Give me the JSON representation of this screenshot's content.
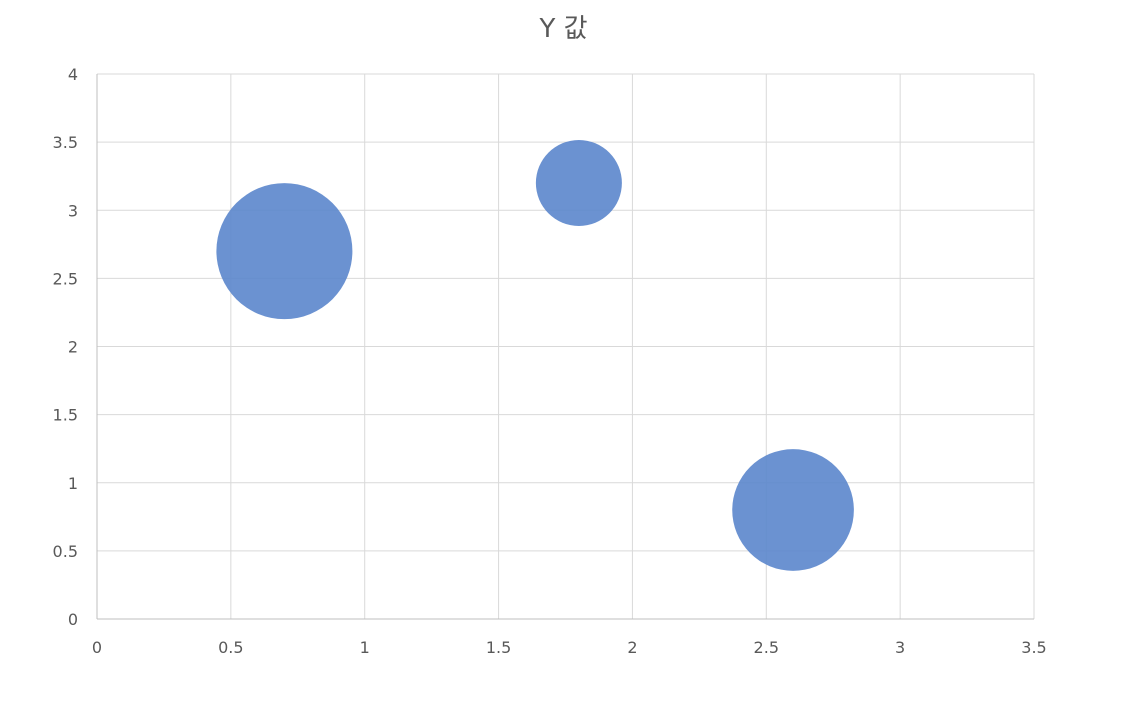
{
  "chart_data": {
    "type": "bubble",
    "title": "Y 값",
    "xlabel": "",
    "ylabel": "",
    "xlim": [
      0,
      3.5
    ],
    "ylim": [
      0,
      4
    ],
    "x_ticks": [
      "0",
      "0.5",
      "1",
      "1.5",
      "2",
      "2.5",
      "3",
      "3.5"
    ],
    "y_ticks": [
      "0",
      "0.5",
      "1",
      "1.5",
      "2",
      "2.5",
      "3",
      "3.5",
      "4"
    ],
    "grid": true,
    "legend": "none",
    "series": [
      {
        "color": "#5b86cc",
        "points": [
          {
            "x": 0.7,
            "y": 2.7,
            "size": 10
          },
          {
            "x": 1.8,
            "y": 3.2,
            "size": 4
          },
          {
            "x": 2.6,
            "y": 0.8,
            "size": 8
          }
        ]
      }
    ]
  }
}
